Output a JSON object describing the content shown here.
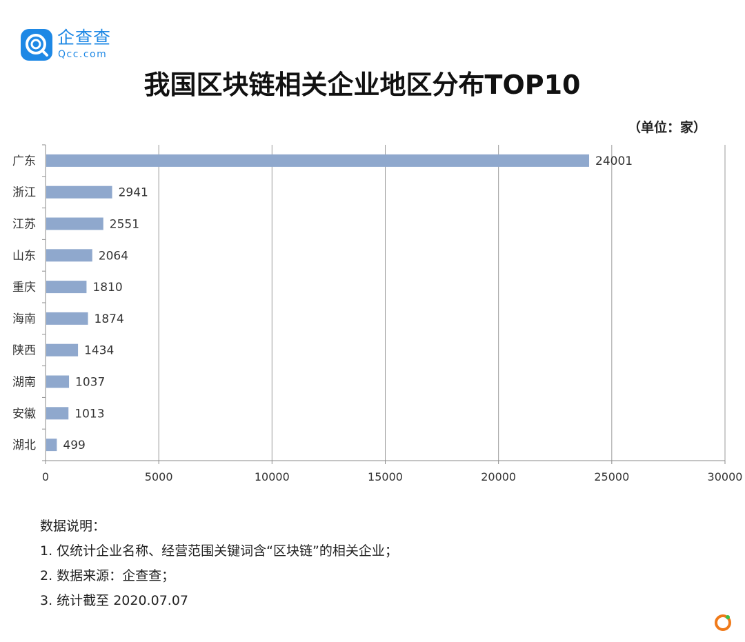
{
  "brand": {
    "name_cn": "企查查",
    "name_en": "Qcc.com",
    "logo_icon": "qcc-logo-icon",
    "color": "#1e88e5"
  },
  "title": "我国区块链相关企业地区分布TOP10",
  "unit_label": "（单位：家）",
  "chart_data": {
    "type": "bar",
    "orientation": "horizontal",
    "title": "我国区块链相关企业地区分布TOP10",
    "categories": [
      "广东",
      "浙江",
      "江苏",
      "山东",
      "重庆",
      "海南",
      "陕西",
      "湖南",
      "安徽",
      "湖北"
    ],
    "values": [
      24001,
      2941,
      2551,
      2064,
      1810,
      1874,
      1434,
      1037,
      1013,
      499
    ],
    "xlim": [
      0,
      30000
    ],
    "xticks": [
      0,
      5000,
      10000,
      15000,
      20000,
      25000,
      30000
    ],
    "grid": true,
    "bar_color": "#8fa8cd",
    "data_labels": true
  },
  "notes": {
    "heading": "数据说明：",
    "items": [
      "1. 仅统计企业名称、经营范围关键词含“区块链”的相关企业；",
      "2. 数据来源：企查查；",
      "3. 统计截至 2020.07.07"
    ]
  },
  "corner_icon": "orange-ring-icon"
}
